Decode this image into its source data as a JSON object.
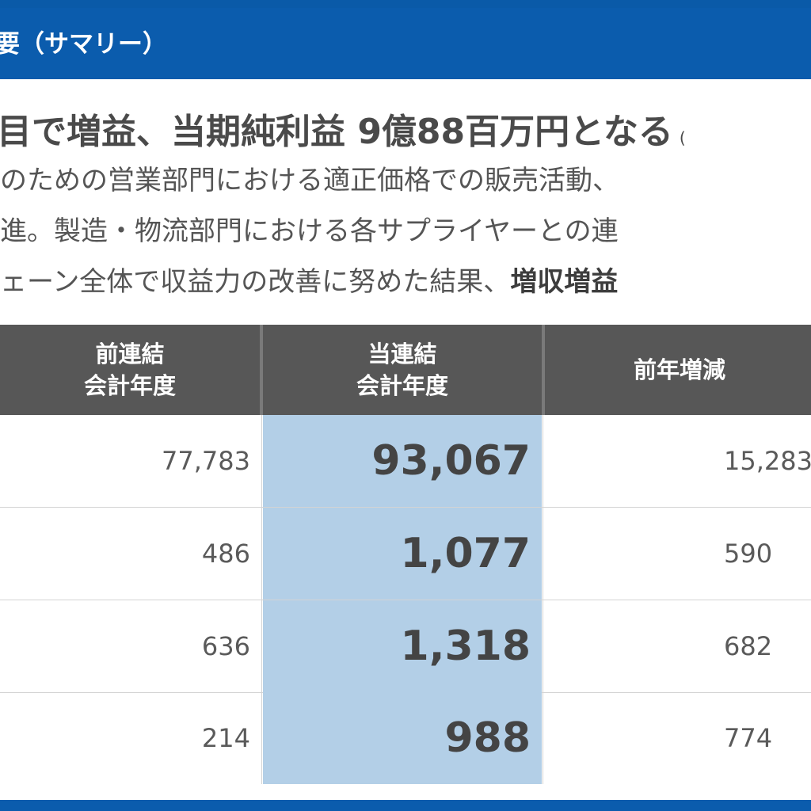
{
  "header": {
    "title": "要（サマリー）"
  },
  "headline": {
    "text": "目で増益、当期純利益 9億88百万円となる",
    "sub": "("
  },
  "paragraph": {
    "line1": "のための営業部門における適正価格での販売活動、",
    "line2": "進。製造・物流部門における各サプライヤーとの連",
    "line3_pre": "ェーン全体で収益力の改善に努めた結果、",
    "line3_bold": "増収増益"
  },
  "table": {
    "columns": [
      {
        "line1": "前連結",
        "line2": "会計年度"
      },
      {
        "line1": "当連結",
        "line2": "会計年度"
      },
      {
        "line1": "前年増減",
        "line2": ""
      }
    ],
    "rows": [
      {
        "prev": "77,783",
        "current": "93,067",
        "diff": "15,283"
      },
      {
        "prev": "486",
        "current": "1,077",
        "diff": "590"
      },
      {
        "prev": "636",
        "current": "1,318",
        "diff": "682"
      },
      {
        "prev": "214",
        "current": "988",
        "diff": "774"
      }
    ]
  },
  "colors": {
    "banner": "#0b5cad",
    "table_header": "#575757",
    "highlight_column": "#b3cfe7"
  }
}
